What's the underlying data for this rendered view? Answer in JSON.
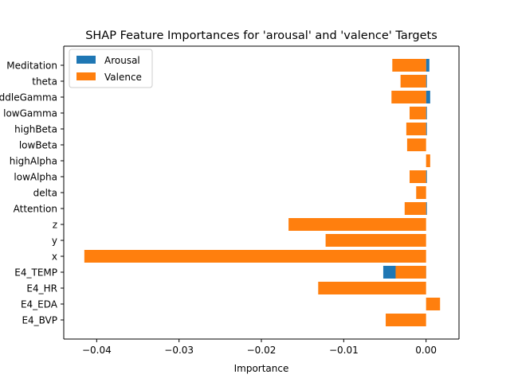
{
  "chart_data": {
    "type": "bar",
    "orientation": "horizontal",
    "title": "SHAP Feature Importances for 'arousal' and 'valence' Targets",
    "xlabel": "Importance",
    "ylabel": "",
    "xlim": [
      -0.044,
      0.004
    ],
    "xticks": [
      -0.04,
      -0.03,
      -0.02,
      -0.01,
      0.0
    ],
    "xtick_labels": [
      "−0.04",
      "−0.03",
      "−0.02",
      "−0.01",
      "0.00"
    ],
    "categories": [
      "E4_BVP",
      "E4_EDA",
      "E4_HR",
      "E4_TEMP",
      "x",
      "y",
      "z",
      "Attention",
      "delta",
      "lowAlpha",
      "highAlpha",
      "lowBeta",
      "highBeta",
      "lowGamma",
      "middleGamma",
      "Meditation",
      "theta"
    ],
    "category_order_top_to_bottom": [
      "Meditation",
      "theta",
      "middleGamma",
      "lowGamma",
      "highBeta",
      "lowBeta",
      "highAlpha",
      "lowAlpha",
      "delta",
      "Attention",
      "z",
      "y",
      "x",
      "E4_TEMP",
      "E4_HR",
      "E4_EDA",
      "E4_BVP"
    ],
    "series": [
      {
        "name": "Arousal",
        "color": "#1f77b4",
        "values_top_to_bottom": [
          0.0004,
          0.0001,
          0.0005,
          0.0001,
          0.0001,
          0.0,
          0.0,
          0.0001,
          0.0,
          0.0001,
          0.0,
          0.0,
          0.0,
          -0.0052,
          0.0,
          0.0,
          0.0
        ]
      },
      {
        "name": "Valence",
        "color": "#ff7f0e",
        "values_top_to_bottom": [
          -0.0041,
          -0.0031,
          -0.0042,
          -0.002,
          -0.0024,
          -0.0023,
          0.0005,
          -0.002,
          -0.0012,
          -0.0026,
          -0.0167,
          -0.0122,
          -0.0415,
          -0.0037,
          -0.0131,
          0.0017,
          -0.0049
        ]
      }
    ],
    "legend_position": "top-left",
    "grid": false
  }
}
